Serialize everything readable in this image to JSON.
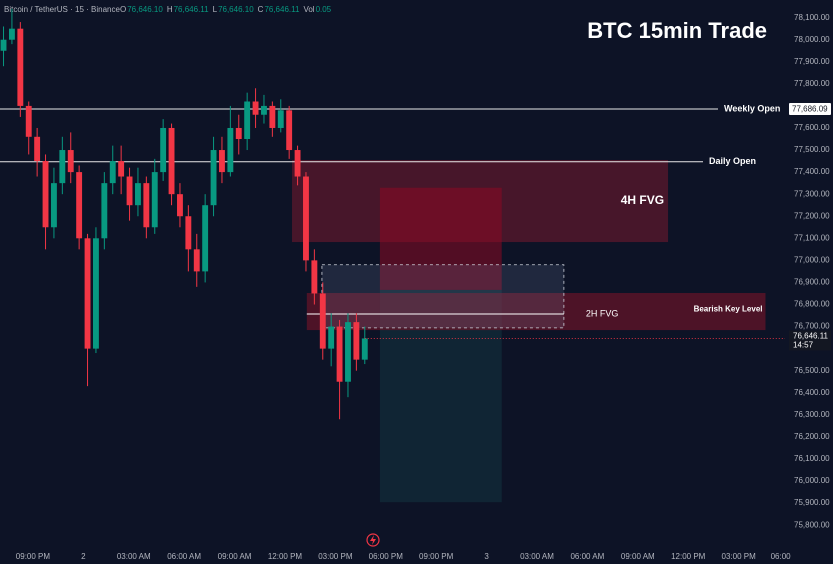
{
  "chart_data": {
    "type": "candlestick",
    "title": "BTC 15min Trade",
    "header": "Bitcoin / TetherUS · 15 · Binance",
    "ohlc_keys": [
      "O",
      "H",
      "L",
      "C",
      "Vol"
    ],
    "ohlc_values": [
      "76,646.10",
      "76,646.11",
      "76,646.10",
      "76,646.11",
      "0.05"
    ],
    "up_color": "#089981",
    "down_color": "#f23645",
    "x": [
      19.25,
      19.75,
      20.25,
      20.75,
      21.25,
      21.75,
      22.25,
      22.75,
      23.25,
      23.75,
      24.25,
      24.75,
      25.25,
      25.75,
      26.25,
      26.75,
      27.25,
      27.75,
      28.25,
      28.75,
      29.25,
      29.75,
      30.25,
      30.75,
      31.25,
      31.75,
      32.25,
      32.75,
      33.25,
      33.75,
      34.25,
      34.75,
      35.25,
      35.75,
      36.25,
      36.75,
      37.25,
      37.75,
      38.25,
      38.75,
      39.25,
      39.75,
      40.25,
      40.75
    ],
    "open": [
      77950,
      78000,
      78050,
      77700,
      77560,
      77450,
      77150,
      77350,
      77500,
      77400,
      77100,
      76600,
      77100,
      77350,
      77450,
      77380,
      77250,
      77350,
      77150,
      77400,
      77600,
      77300,
      77200,
      77050,
      76950,
      77250,
      77500,
      77400,
      77600,
      77550,
      77720,
      77660,
      77700,
      77600,
      77680,
      77500,
      77380,
      77000,
      76850,
      76600,
      76700,
      76450,
      76720,
      76550
    ],
    "high": [
      78060,
      78140,
      78080,
      77720,
      77600,
      77480,
      77420,
      77560,
      77580,
      77430,
      77120,
      77150,
      77400,
      77520,
      77520,
      77420,
      77420,
      77380,
      77460,
      77640,
      77620,
      77350,
      77250,
      77120,
      77300,
      77560,
      77560,
      77700,
      77660,
      77760,
      77780,
      77750,
      77720,
      77730,
      77700,
      77520,
      77400,
      77050,
      76900,
      76760,
      76730,
      76760,
      76760,
      76700
    ],
    "low": [
      77880,
      77980,
      77650,
      77480,
      77380,
      77050,
      77100,
      77300,
      77350,
      77050,
      76430,
      76580,
      77050,
      77300,
      77300,
      77180,
      77200,
      77100,
      77120,
      77360,
      77250,
      77150,
      76950,
      76880,
      76900,
      77200,
      77350,
      77380,
      77480,
      77500,
      77600,
      77620,
      77560,
      77580,
      77460,
      77340,
      76950,
      76800,
      76550,
      76520,
      76280,
      76380,
      76500,
      76530
    ],
    "close": [
      78000,
      78050,
      77700,
      77560,
      77450,
      77150,
      77350,
      77500,
      77400,
      77100,
      76600,
      77100,
      77350,
      77450,
      77380,
      77250,
      77350,
      77150,
      77400,
      77600,
      77300,
      77200,
      77050,
      76950,
      77250,
      77500,
      77400,
      77600,
      77550,
      77720,
      77660,
      77700,
      77600,
      77680,
      77500,
      77380,
      77000,
      76850,
      76600,
      76700,
      76450,
      76720,
      76550,
      76646.11
    ],
    "xlim": [
      19.04,
      65.76
    ],
    "ylim": [
      75710,
      78180
    ],
    "xticks": [
      {
        "value": 21,
        "label": "09:00 PM"
      },
      {
        "value": 24,
        "label": "2"
      },
      {
        "value": 27,
        "label": "03:00 AM"
      },
      {
        "value": 30,
        "label": "06:00 AM"
      },
      {
        "value": 33,
        "label": "09:00 AM"
      },
      {
        "value": 36,
        "label": "12:00 PM"
      },
      {
        "value": 39,
        "label": "03:00 PM"
      },
      {
        "value": 42,
        "label": "06:00 PM"
      },
      {
        "value": 45,
        "label": "09:00 PM"
      },
      {
        "value": 48,
        "label": "3"
      },
      {
        "value": 51,
        "label": "03:00 AM"
      },
      {
        "value": 54,
        "label": "06:00 AM"
      },
      {
        "value": 57,
        "label": "09:00 AM"
      },
      {
        "value": 60,
        "label": "12:00 PM"
      },
      {
        "value": 63,
        "label": "03:00 PM"
      },
      {
        "value": 65.5,
        "label": "06:00"
      }
    ],
    "yticks": [
      {
        "value": 78100,
        "label": "78,100.00"
      },
      {
        "value": 78000,
        "label": "78,000.00"
      },
      {
        "value": 77900,
        "label": "77,900.00"
      },
      {
        "value": 77800,
        "label": "77,800.00"
      },
      {
        "value": 77600,
        "label": "77,600.00"
      },
      {
        "value": 77500,
        "label": "77,500.00"
      },
      {
        "value": 77400,
        "label": "77,400.00"
      },
      {
        "value": 77300,
        "label": "77,300.00"
      },
      {
        "value": 77200,
        "label": "77,200.00"
      },
      {
        "value": 77100,
        "label": "77,100.00"
      },
      {
        "value": 77000,
        "label": "77,000.00"
      },
      {
        "value": 76900,
        "label": "76,900.00"
      },
      {
        "value": 76800,
        "label": "76,800.00"
      },
      {
        "value": 76700,
        "label": "76,700.00"
      },
      {
        "value": 76500,
        "label": "76,500.00"
      },
      {
        "value": 76400,
        "label": "76,400.00"
      },
      {
        "value": 76300,
        "label": "76,300.00"
      },
      {
        "value": 76200,
        "label": "76,200.00"
      },
      {
        "value": 76100,
        "label": "76,100.00"
      },
      {
        "value": 76000,
        "label": "76,000.00"
      },
      {
        "value": 75900,
        "label": "75,900.00"
      },
      {
        "value": 75800,
        "label": "75,800.00"
      }
    ],
    "zones": [
      {
        "x0": 36.42,
        "x1": 58.8,
        "y0": 77083,
        "y1": 77455,
        "color": "rgba(120,25,45,0.55)",
        "label": "4H FVG"
      },
      {
        "x0": 41.65,
        "x1": 48.9,
        "y0": 76866,
        "y1": 77329,
        "color": "rgba(140,10,35,0.55)"
      },
      {
        "x0": 41.65,
        "x1": 48.9,
        "y0": 75904,
        "y1": 76866,
        "color": "rgba(20,60,70,0.45)"
      },
      {
        "x0": 37.3,
        "x1": 64.6,
        "y0": 76684,
        "y1": 76852,
        "color": "rgba(120,20,40,0.6)",
        "label": "Bearish Key Level"
      }
    ],
    "dashed_box": {
      "x0": 38.2,
      "x1": 52.6,
      "y0": 76694,
      "y1": 76980
    },
    "levels": [
      {
        "label": "Weekly Open",
        "value": 77686.09,
        "value_label": "77,686.09"
      },
      {
        "label": "Daily Open",
        "value": 77447
      }
    ],
    "fvg_line": {
      "label": "2H FVG",
      "value": 76757,
      "x0": 37.3,
      "x1": 52.6
    },
    "last_price": {
      "value": 76646.11,
      "label": "76,646.11",
      "countdown": "14:57"
    }
  }
}
